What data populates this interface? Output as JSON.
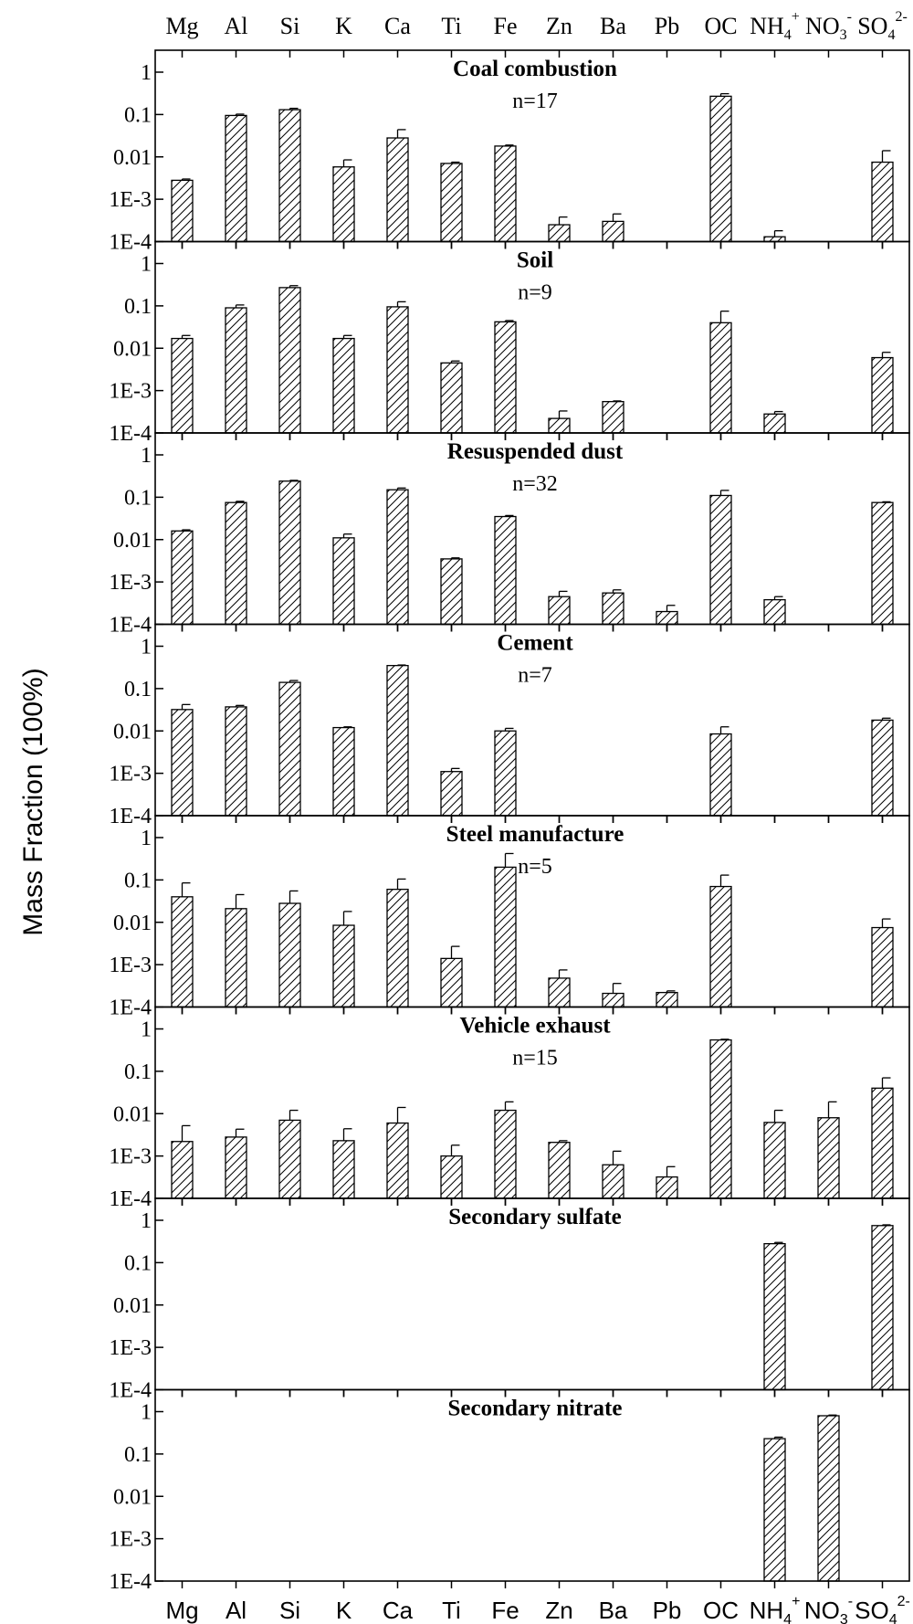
{
  "chart_data": {
    "type": "bar",
    "ylabel": "Mass Fraction (100%)",
    "yscale": "log",
    "ylim": [
      0.0001,
      1
    ],
    "ytick_labels": [
      "1E-4",
      "1E-3",
      "0.01",
      "0.1",
      "1"
    ],
    "categories": [
      "Mg",
      "Al",
      "Si",
      "K",
      "Ca",
      "Ti",
      "Fe",
      "Zn",
      "Ba",
      "Pb",
      "OC",
      "NH4+",
      "NO3-",
      "SO42-"
    ],
    "category_labels": [
      {
        "base": "Mg",
        "sub": "",
        "sup": ""
      },
      {
        "base": "Al",
        "sub": "",
        "sup": ""
      },
      {
        "base": "Si",
        "sub": "",
        "sup": ""
      },
      {
        "base": "K",
        "sub": "",
        "sup": ""
      },
      {
        "base": "Ca",
        "sub": "",
        "sup": ""
      },
      {
        "base": "Ti",
        "sub": "",
        "sup": ""
      },
      {
        "base": "Fe",
        "sub": "",
        "sup": ""
      },
      {
        "base": "Zn",
        "sub": "",
        "sup": ""
      },
      {
        "base": "Ba",
        "sub": "",
        "sup": ""
      },
      {
        "base": "Pb",
        "sub": "",
        "sup": ""
      },
      {
        "base": "OC",
        "sub": "",
        "sup": ""
      },
      {
        "base": "NH",
        "sub": "4",
        "sup": "+"
      },
      {
        "base": "NO",
        "sub": "3",
        "sup": "-"
      },
      {
        "base": "SO",
        "sub": "4",
        "sup": "2-"
      }
    ],
    "bar_fill": "diagonal-hatch",
    "panels": [
      {
        "title": "Coal combustion",
        "n_label": "n=17",
        "values": [
          0.0028,
          0.095,
          0.13,
          0.0058,
          0.028,
          0.007,
          0.018,
          0.00025,
          0.0003,
          null,
          0.27,
          0.00013,
          null,
          0.0075
        ],
        "errors_upper": [
          0.003,
          0.102,
          0.14,
          0.0085,
          0.044,
          0.0075,
          0.019,
          0.00038,
          0.00045,
          null,
          0.31,
          0.00018,
          null,
          0.014
        ]
      },
      {
        "title": "Soil",
        "n_label": "n=9",
        "values": [
          0.017,
          0.09,
          0.27,
          0.017,
          0.095,
          0.0045,
          0.042,
          0.00022,
          0.00055,
          null,
          0.04,
          0.00028,
          null,
          0.006
        ],
        "errors_upper": [
          0.02,
          0.105,
          0.3,
          0.02,
          0.125,
          0.005,
          0.045,
          0.00033,
          0.00057,
          null,
          0.075,
          0.00032,
          null,
          0.008
        ]
      },
      {
        "title": "Resuspended dust",
        "n_label": "n=32",
        "values": [
          0.016,
          0.075,
          0.24,
          0.011,
          0.15,
          0.0035,
          0.035,
          0.00045,
          0.00055,
          0.0002,
          0.11,
          0.00038,
          null,
          0.075
        ],
        "errors_upper": [
          0.017,
          0.08,
          0.25,
          0.0135,
          0.165,
          0.0037,
          0.037,
          0.0006,
          0.00065,
          0.00028,
          0.145,
          0.00045,
          null,
          0.078
        ]
      },
      {
        "title": "Cement",
        "n_label": "n=7",
        "values": [
          0.032,
          0.037,
          0.14,
          0.012,
          0.35,
          0.0011,
          0.01,
          null,
          null,
          null,
          0.0085,
          null,
          null,
          0.018
        ],
        "errors_upper": [
          0.042,
          0.04,
          0.155,
          0.0125,
          0.36,
          0.0013,
          0.0115,
          null,
          null,
          null,
          0.0125,
          null,
          null,
          0.02
        ]
      },
      {
        "title": "Steel manufacture",
        "n_label": "n=5",
        "values": [
          0.04,
          0.021,
          0.028,
          0.0085,
          0.06,
          0.0014,
          0.2,
          0.00048,
          0.00021,
          0.00022,
          0.07,
          null,
          null,
          0.0075
        ],
        "errors_upper": [
          0.085,
          0.045,
          0.055,
          0.018,
          0.105,
          0.0027,
          0.42,
          0.00075,
          0.00036,
          0.00024,
          0.13,
          null,
          null,
          0.012
        ]
      },
      {
        "title": "Vehicle exhaust",
        "n_label": "n=15",
        "values": [
          0.0022,
          0.0028,
          0.007,
          0.0023,
          0.006,
          0.001,
          0.012,
          0.0021,
          0.00062,
          0.00032,
          0.55,
          0.0062,
          0.008,
          0.04
        ],
        "errors_upper": [
          0.0052,
          0.0043,
          0.012,
          0.0044,
          0.014,
          0.0018,
          0.019,
          0.0023,
          0.0013,
          0.00056,
          0.57,
          0.012,
          0.019,
          0.07
        ]
      },
      {
        "title": "Secondary sulfate",
        "n_label": "",
        "values": [
          null,
          null,
          null,
          null,
          null,
          null,
          null,
          null,
          null,
          null,
          null,
          0.28,
          null,
          0.75
        ],
        "errors_upper": [
          null,
          null,
          null,
          null,
          null,
          null,
          null,
          null,
          null,
          null,
          null,
          0.3,
          null,
          0.78
        ]
      },
      {
        "title": "Secondary nitrate",
        "n_label": "",
        "values": [
          null,
          null,
          null,
          null,
          null,
          null,
          null,
          null,
          null,
          null,
          null,
          0.23,
          0.8,
          null
        ],
        "errors_upper": [
          null,
          null,
          null,
          null,
          null,
          null,
          null,
          null,
          null,
          null,
          null,
          0.25,
          0.83,
          null
        ]
      }
    ]
  }
}
